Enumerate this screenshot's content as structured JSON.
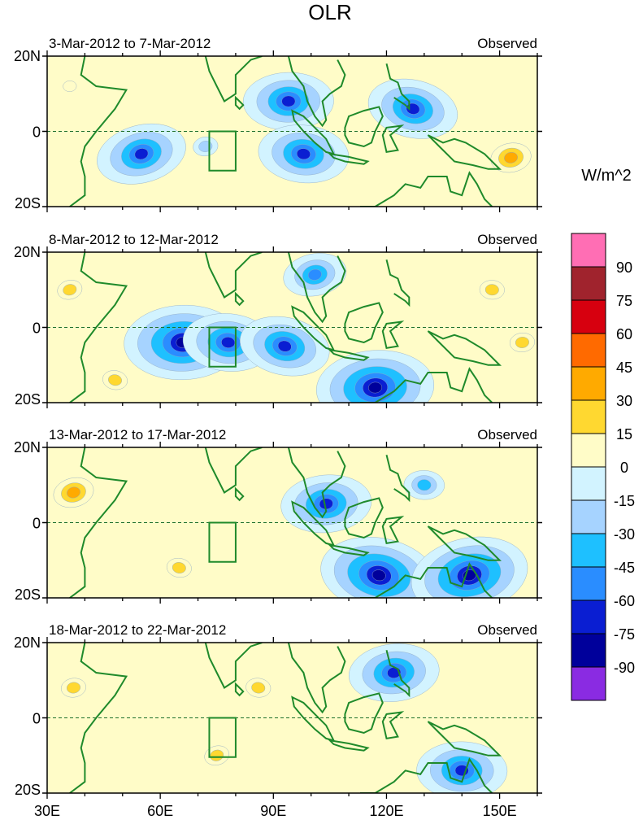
{
  "title": "OLR",
  "chart_data": {
    "type": "heatmap",
    "title": "OLR",
    "units": "W/m^2",
    "x_range": [
      30,
      160
    ],
    "y_range": [
      -20,
      20
    ],
    "x_ticks": [
      "30E",
      "60E",
      "90E",
      "120E",
      "150E"
    ],
    "y_ticks": [
      "20N",
      "0",
      "20S"
    ],
    "colorbar": {
      "labels": [
        "90",
        "75",
        "60",
        "45",
        "30",
        "15",
        "0",
        "-15",
        "-30",
        "-45",
        "-60",
        "-75",
        "-90"
      ],
      "colors": [
        "#ff6eb4",
        "#a0232d",
        "#d7000f",
        "#ff6a00",
        "#ffaa00",
        "#ffd830",
        "#fffcc8",
        "#d2f3ff",
        "#a6d3ff",
        "#1ec0ff",
        "#2a8dff",
        "#0a1ed2",
        "#00009b",
        "#8a2be2"
      ]
    },
    "panels": [
      {
        "period": "3-Mar-2012 to 7-Mar-2012",
        "label": "Observed",
        "anomalies": [
          {
            "name": "w-indian-negative",
            "lon": 55,
            "lat": -6,
            "value": -70
          },
          {
            "name": "eq-indian-negative",
            "lon": 72,
            "lat": -4,
            "value": -30
          },
          {
            "name": "bay-of-bengal-negative",
            "lon": 94,
            "lat": 8,
            "value": -75
          },
          {
            "name": "maritime-continent-negative",
            "lon": 98,
            "lat": -6,
            "value": -75
          },
          {
            "name": "philippines-negative",
            "lon": 127,
            "lat": 6,
            "value": -70
          },
          {
            "name": "w-pacific-positive",
            "lon": 153,
            "lat": -7,
            "value": 45
          },
          {
            "name": "east-africa-positive",
            "lon": 36,
            "lat": 12,
            "value": 15
          }
        ]
      },
      {
        "period": "8-Mar-2012 to 12-Mar-2012",
        "label": "Observed",
        "anomalies": [
          {
            "name": "central-indian-negative",
            "lon": 66,
            "lat": -4,
            "value": -90
          },
          {
            "name": "eq-indian-negative",
            "lon": 78,
            "lat": -4,
            "value": -75
          },
          {
            "name": "sumatra-negative",
            "lon": 93,
            "lat": -5,
            "value": -75
          },
          {
            "name": "indochina-negative",
            "lon": 101,
            "lat": 14,
            "value": -60
          },
          {
            "name": "nw-australia-negative",
            "lon": 117,
            "lat": -16,
            "value": -90
          },
          {
            "name": "n-pacific-positive",
            "lon": 148,
            "lat": 10,
            "value": 30
          },
          {
            "name": "s-indian-positive",
            "lon": 48,
            "lat": -14,
            "value": 30
          },
          {
            "name": "east-africa-positive",
            "lon": 36,
            "lat": 10,
            "value": 30
          },
          {
            "name": "e-pacific-positive",
            "lon": 156,
            "lat": -4,
            "value": 30
          }
        ]
      },
      {
        "period": "13-Mar-2012 to 17-Mar-2012",
        "label": "Observed",
        "anomalies": [
          {
            "name": "java-sea-negative",
            "lon": 118,
            "lat": -14,
            "value": -90
          },
          {
            "name": "arafura-negative",
            "lon": 142,
            "lat": -14,
            "value": -90
          },
          {
            "name": "borneo-negative",
            "lon": 104,
            "lat": 5,
            "value": -75
          },
          {
            "name": "philippines-negative",
            "lon": 130,
            "lat": 10,
            "value": -45
          },
          {
            "name": "s-indian-positive",
            "lon": 65,
            "lat": -12,
            "value": 30
          },
          {
            "name": "east-africa-positive",
            "lon": 37,
            "lat": 8,
            "value": 45
          }
        ]
      },
      {
        "period": "18-Mar-2012 to 22-Mar-2012",
        "label": "Observed",
        "anomalies": [
          {
            "name": "philippines-negative",
            "lon": 122,
            "lat": 12,
            "value": -75
          },
          {
            "name": "timor-arafura-negative",
            "lon": 140,
            "lat": -14,
            "value": -75
          },
          {
            "name": "bay-of-bengal-positive",
            "lon": 86,
            "lat": 8,
            "value": 30
          },
          {
            "name": "central-indian-positive",
            "lon": 75,
            "lat": -10,
            "value": 30
          },
          {
            "name": "east-africa-positive",
            "lon": 37,
            "lat": 8,
            "value": 30
          }
        ]
      }
    ]
  }
}
